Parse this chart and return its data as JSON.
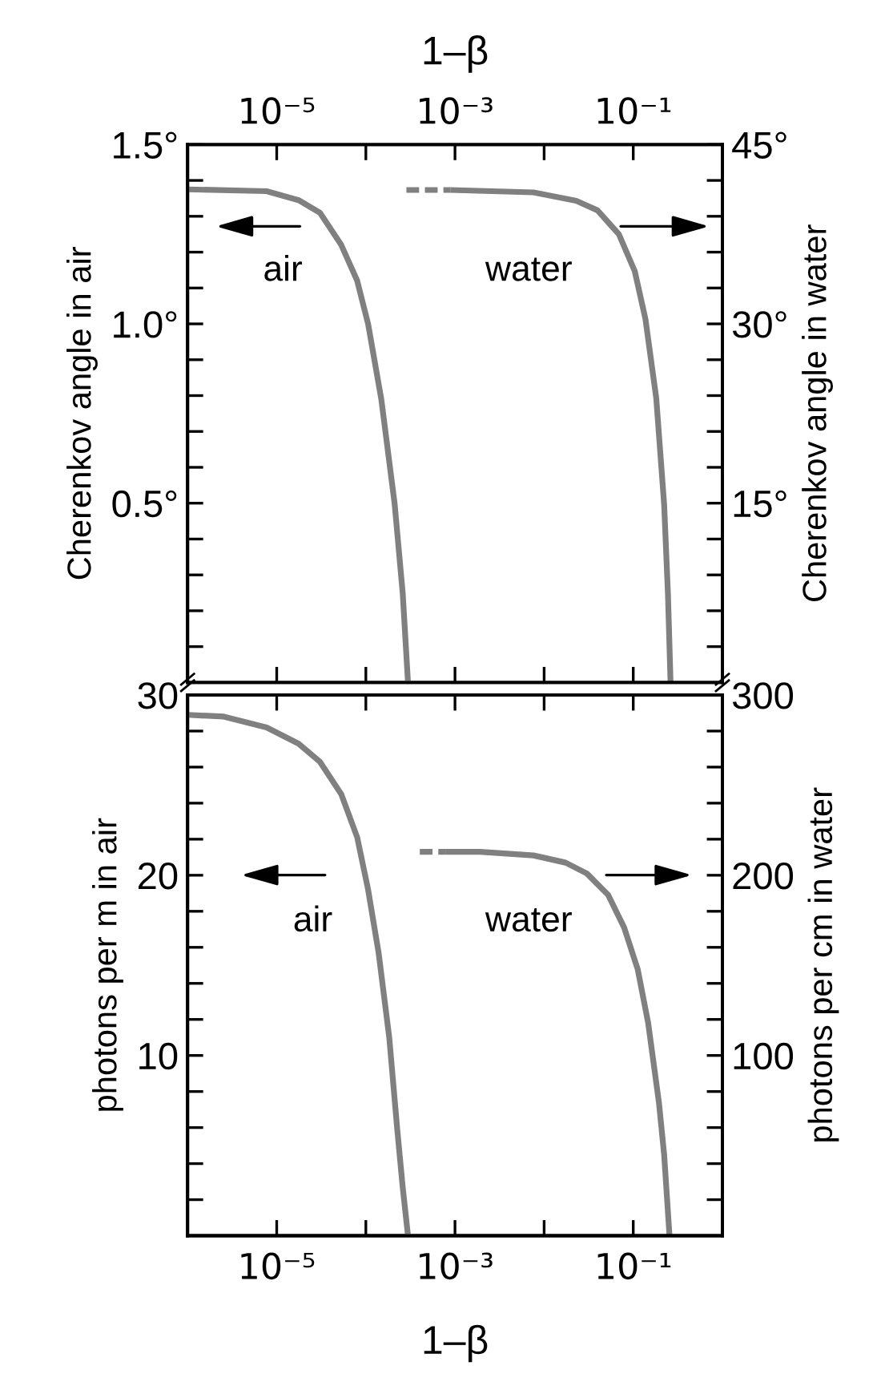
{
  "chart_data": [
    {
      "type": "line",
      "log": "x",
      "xlabel": "1–β",
      "ylabel": "Cherenkov angle in air",
      "y2label": "Cherenkov angle in water",
      "xlim": [
        1e-06,
        1
      ],
      "xticks": [
        {
          "value": 1e-05,
          "label": "10⁻⁵"
        },
        {
          "value": 0.0001,
          "label": null
        },
        {
          "value": 0.001,
          "label": "10⁻³"
        },
        {
          "value": 0.01,
          "label": null
        },
        {
          "value": 0.1,
          "label": "10⁻¹"
        }
      ],
      "ylim": [
        0,
        1.5
      ],
      "yticks": [
        {
          "value": 0.1,
          "label": null
        },
        {
          "value": 0.2,
          "label": null
        },
        {
          "value": 0.3,
          "label": null
        },
        {
          "value": 0.4,
          "label": null
        },
        {
          "value": 0.5,
          "label": "0.5°"
        },
        {
          "value": 0.6,
          "label": null
        },
        {
          "value": 0.7,
          "label": null
        },
        {
          "value": 0.8,
          "label": null
        },
        {
          "value": 0.9,
          "label": null
        },
        {
          "value": 1.0,
          "label": "1.0°"
        },
        {
          "value": 1.1,
          "label": null
        },
        {
          "value": 1.2,
          "label": null
        },
        {
          "value": 1.3,
          "label": null
        },
        {
          "value": 1.4,
          "label": null
        },
        {
          "value": 1.5,
          "label": "1.5°"
        }
      ],
      "y2lim": [
        0,
        45
      ],
      "y2ticks": [
        {
          "value": 3,
          "label": null
        },
        {
          "value": 6,
          "label": null
        },
        {
          "value": 9,
          "label": null
        },
        {
          "value": 12,
          "label": null
        },
        {
          "value": 15,
          "label": "15°"
        },
        {
          "value": 18,
          "label": null
        },
        {
          "value": 21,
          "label": null
        },
        {
          "value": 24,
          "label": null
        },
        {
          "value": 27,
          "label": null
        },
        {
          "value": 30,
          "label": "30°"
        },
        {
          "value": 33,
          "label": null
        },
        {
          "value": 36,
          "label": null
        },
        {
          "value": 39,
          "label": null
        },
        {
          "value": 42,
          "label": null
        },
        {
          "value": 45,
          "label": "45°"
        }
      ],
      "series": [
        {
          "color": "#808080",
          "line_style": "solid",
          "x": [
            1e-06,
            7.7e-06,
            1.76e-05,
            3.05e-05,
            5.3e-05,
            8e-05,
            0.000106,
            0.000149,
            0.00021,
            0.000259,
            0.000297
          ],
          "values": [
            1.375,
            1.37,
            1.345,
            1.31,
            1.22,
            1.12,
            1.0,
            0.79,
            0.5,
            0.25,
            0.0
          ]
        },
        {
          "color": "#808080",
          "line_style": "dashed",
          "axis": "y2",
          "x": [
            0.000285,
            0.000895
          ],
          "values": [
            41.2,
            41.2
          ]
        },
        {
          "color": "#808080",
          "line_style": "solid",
          "axis": "y2",
          "x": [
            0.000895,
            0.0076,
            0.0229,
            0.0397,
            0.0689,
            0.104,
            0.137,
            0.181,
            0.222,
            0.245,
            0.262
          ],
          "values": [
            41.2,
            41.0,
            40.3,
            39.5,
            37.5,
            34.4,
            30.4,
            23.8,
            14.9,
            7.4,
            0.0
          ]
        }
      ],
      "annotations": [
        "air",
        "water"
      ]
    },
    {
      "type": "line",
      "log": "x",
      "xlabel": "1–β",
      "ylabel": "photons per m in air",
      "y2label": "photons per cm in water",
      "xlim": [
        1e-06,
        1
      ],
      "xticks": [
        {
          "value": 1e-05,
          "label": "10⁻⁵"
        },
        {
          "value": 0.0001,
          "label": null
        },
        {
          "value": 0.001,
          "label": "10⁻³"
        },
        {
          "value": 0.01,
          "label": null
        },
        {
          "value": 0.1,
          "label": "10⁻¹"
        }
      ],
      "ylim": [
        0,
        30
      ],
      "yticks": [
        {
          "value": 2,
          "label": null
        },
        {
          "value": 4,
          "label": null
        },
        {
          "value": 6,
          "label": null
        },
        {
          "value": 8,
          "label": null
        },
        10,
        {
          "value": 12,
          "label": null
        },
        {
          "value": 14,
          "label": null
        },
        {
          "value": 16,
          "label": null
        },
        {
          "value": 18,
          "label": null
        },
        20,
        {
          "value": 22,
          "label": null
        },
        {
          "value": 24,
          "label": null
        },
        {
          "value": 26,
          "label": null
        },
        {
          "value": 28,
          "label": null
        },
        30
      ],
      "y2lim": [
        0,
        300
      ],
      "y2ticks": [
        {
          "value": 20,
          "label": null
        },
        {
          "value": 40,
          "label": null
        },
        {
          "value": 60,
          "label": null
        },
        {
          "value": 80,
          "label": null
        },
        100,
        {
          "value": 120,
          "label": null
        },
        {
          "value": 140,
          "label": null
        },
        {
          "value": 160,
          "label": null
        },
        {
          "value": 180,
          "label": null
        },
        200,
        {
          "value": 220,
          "label": null
        },
        {
          "value": 240,
          "label": null
        },
        {
          "value": 260,
          "label": null
        },
        {
          "value": 280,
          "label": null
        },
        300
      ],
      "series": [
        {
          "color": "#808080",
          "line_style": "solid",
          "x": [
            1e-06,
            2.55e-06,
            7.7e-06,
            1.76e-05,
            3.05e-05,
            5.3e-05,
            8e-05,
            0.000106,
            0.000139,
            0.000183,
            0.000225,
            0.000259,
            0.000297
          ],
          "values": [
            28.9,
            28.8,
            28.2,
            27.3,
            26.3,
            24.5,
            22.1,
            19.2,
            15.7,
            11.0,
            5.9,
            2.7,
            0.0
          ]
        },
        {
          "color": "#808080",
          "line_style": "dashed",
          "axis": "y2",
          "x": [
            0.000403,
            0.00078
          ],
          "values": [
            213,
            213
          ]
        },
        {
          "color": "#808080",
          "line_style": "solid",
          "axis": "y2",
          "x": [
            0.00078,
            0.00191,
            0.0076,
            0.0174,
            0.0301,
            0.0524,
            0.079,
            0.112,
            0.147,
            0.194,
            0.222,
            0.255
          ],
          "values": [
            213,
            213,
            211,
            207,
            201,
            189,
            171,
            148,
            118,
            74,
            45,
            0
          ]
        }
      ],
      "annotations": [
        "air",
        "water"
      ]
    }
  ]
}
